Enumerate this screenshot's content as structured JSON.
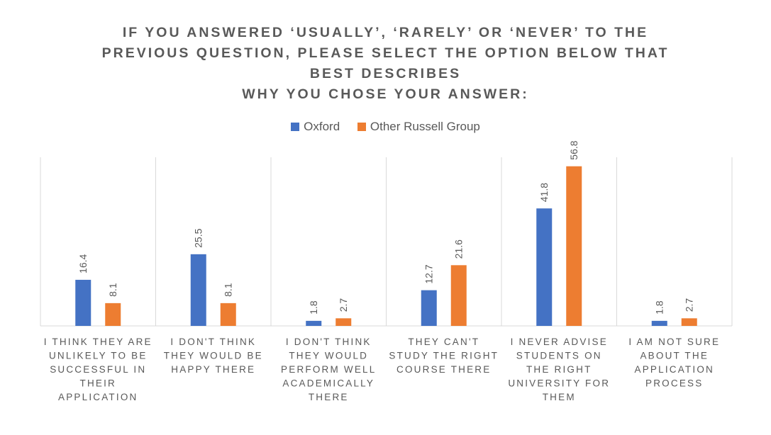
{
  "title_lines": [
    "IF YOU ANSWERED ‘USUALLY’, ‘RARELY’ OR ‘NEVER’ TO THE",
    "PREVIOUS QUESTION, PLEASE SELECT THE OPTION BELOW THAT",
    "BEST DESCRIBES",
    "WHY YOU CHOSE YOUR ANSWER:"
  ],
  "colors": {
    "oxford": "#4472C4",
    "other": "#ED7D31",
    "grid": "#D9D9D9",
    "text": "#595959"
  },
  "chart_data": {
    "type": "bar",
    "title": "IF YOU ANSWERED ‘USUALLY’, ‘RARELY’ OR ‘NEVER’ TO THE PREVIOUS QUESTION, PLEASE SELECT THE OPTION BELOW THAT BEST DESCRIBES WHY YOU CHOSE YOUR ANSWER:",
    "categories": [
      "I THINK THEY ARE UNLIKELY TO BE SUCCESSFUL IN THEIR APPLICATION",
      "I DON'T THINK THEY WOULD BE HAPPY THERE",
      "I DON'T THINK THEY WOULD PERFORM WELL ACADEMICALLY THERE",
      "THEY CAN'T STUDY THE RIGHT COURSE THERE",
      "I NEVER ADVISE STUDENTS ON THE RIGHT UNIVERSITY FOR THEM",
      "I AM NOT SURE ABOUT THE APPLICATION PROCESS"
    ],
    "category_lines": [
      [
        "I THINK THEY ARE",
        "UNLIKELY TO BE",
        "SUCCESSFUL IN",
        "THEIR",
        "APPLICATION"
      ],
      [
        "I DON'T THINK",
        "THEY WOULD BE",
        "HAPPY THERE"
      ],
      [
        "I DON'T THINK",
        "THEY WOULD",
        "PERFORM WELL",
        "ACADEMICALLY",
        "THERE"
      ],
      [
        "THEY CAN'T",
        "STUDY THE RIGHT",
        "COURSE THERE"
      ],
      [
        "I NEVER ADVISE",
        "STUDENTS ON",
        "THE RIGHT",
        "UNIVERSITY FOR",
        "THEM"
      ],
      [
        "I AM NOT SURE",
        "ABOUT THE",
        "APPLICATION",
        "PROCESS"
      ]
    ],
    "series": [
      {
        "name": "Oxford",
        "values": [
          16.4,
          25.5,
          1.8,
          12.7,
          41.8,
          1.8
        ]
      },
      {
        "name": "Other Russell Group",
        "values": [
          8.1,
          8.1,
          2.7,
          21.6,
          56.8,
          2.7
        ]
      }
    ],
    "value_labels": [
      [
        "16.4",
        "25.5",
        "1.8",
        "12.7",
        "41.8",
        "1.8"
      ],
      [
        "8.1",
        "8.1",
        "2.7",
        "21.6",
        "56.8",
        "2.7"
      ]
    ],
    "legend_position": "top",
    "grid": "vertical category separators",
    "ylim": [
      0,
      60
    ]
  }
}
